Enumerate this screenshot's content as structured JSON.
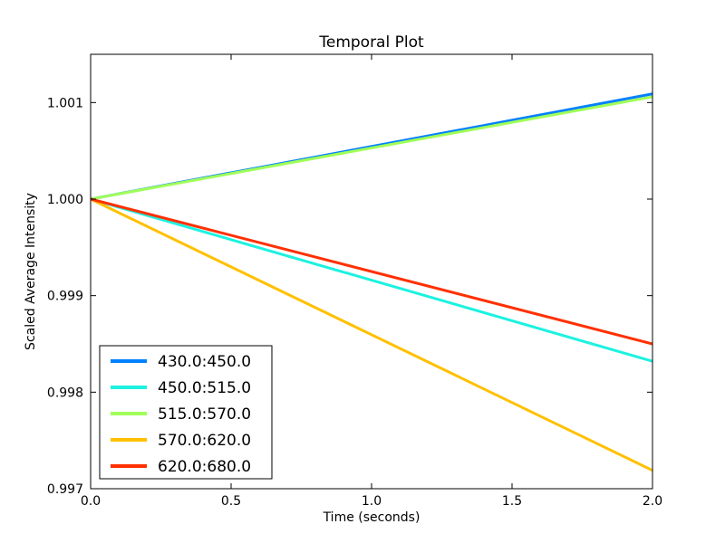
{
  "chart_data": {
    "type": "line",
    "title": "Temporal Plot",
    "xlabel": "Time (seconds)",
    "ylabel": "Scaled Average Intensity",
    "xlim": [
      0.0,
      2.0
    ],
    "ylim": [
      0.997,
      1.0015
    ],
    "x_ticks": [
      "0.0",
      "0.5",
      "1.0",
      "1.5",
      "2.0"
    ],
    "y_ticks": [
      "0.997",
      "0.998",
      "0.999",
      "1.000",
      "1.001"
    ],
    "x_tick_values": [
      0.0,
      0.5,
      1.0,
      1.5,
      2.0
    ],
    "y_tick_values": [
      0.997,
      0.998,
      0.999,
      1.0,
      1.001
    ],
    "grid": false,
    "legend_position": "lower-left",
    "series": [
      {
        "name": "430.0:450.0",
        "color": "#0080ff",
        "x": [
          0.0,
          2.0
        ],
        "y": [
          1.0,
          1.00109
        ]
      },
      {
        "name": "450.0:515.0",
        "color": "#1cf2e0",
        "x": [
          0.0,
          2.0
        ],
        "y": [
          1.0,
          0.99832
        ]
      },
      {
        "name": "515.0:570.0",
        "color": "#a0ff58",
        "x": [
          0.0,
          2.0
        ],
        "y": [
          1.0,
          1.00106
        ]
      },
      {
        "name": "570.0:620.0",
        "color": "#ffc000",
        "x": [
          0.0,
          2.0
        ],
        "y": [
          1.0,
          0.99719
        ]
      },
      {
        "name": "620.0:680.0",
        "color": "#ff3000",
        "x": [
          0.0,
          2.0
        ],
        "y": [
          1.0,
          0.9985
        ]
      }
    ]
  }
}
